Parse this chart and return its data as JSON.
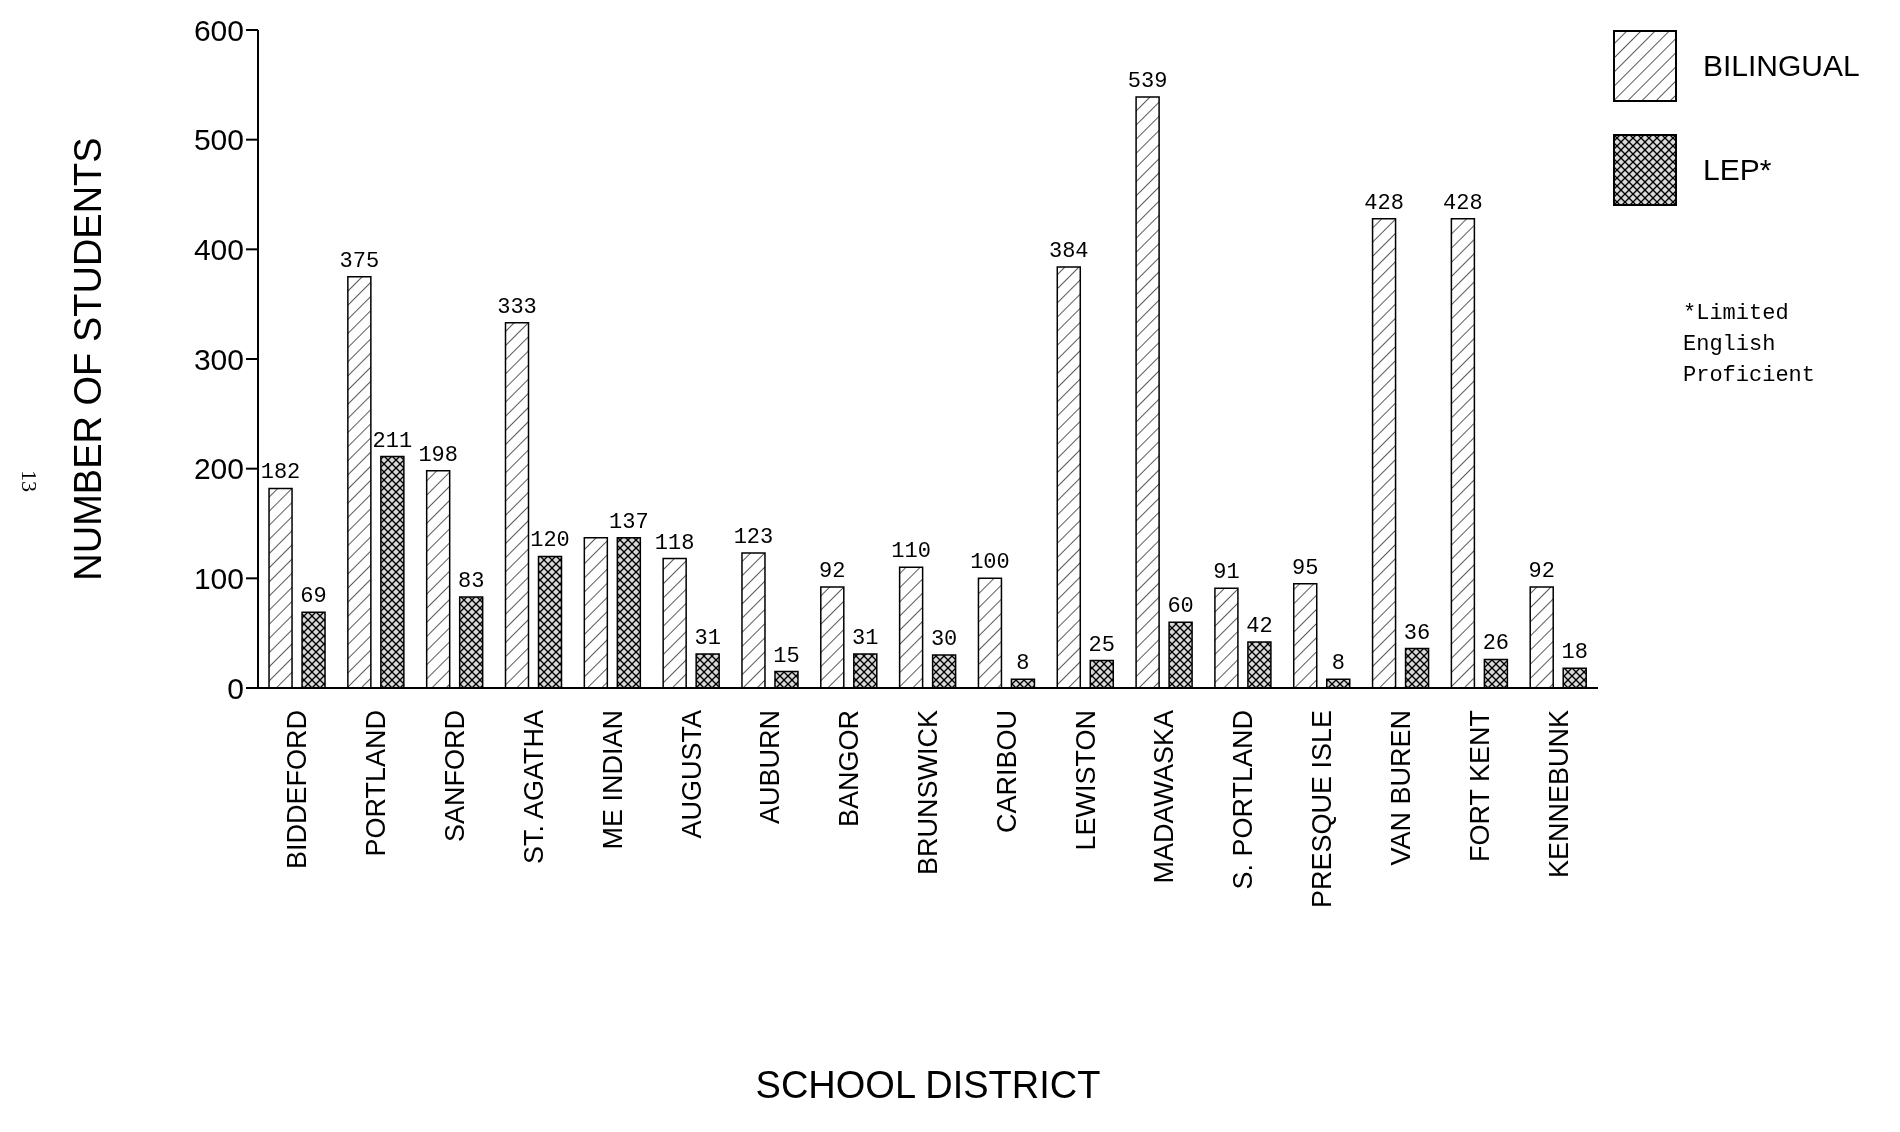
{
  "chart_data": {
    "type": "bar",
    "xlabel": "SCHOOL DISTRICT",
    "ylabel": "NUMBER OF STUDENTS",
    "categories": [
      "BIDDEFORD",
      "PORTLAND",
      "SANFORD",
      "ST. AGATHA",
      "ME INDIAN",
      "AUGUSTA",
      "AUBURN",
      "BANGOR",
      "BRUNSWICK",
      "CARIBOU",
      "LEWISTON",
      "MADAWASKA",
      "S. PORTLAND",
      "PRESQUE ISLE",
      "VAN BUREN",
      "FORT KENT",
      "KENNEBUNK"
    ],
    "series": [
      {
        "name": "BILINGUAL",
        "color": "#000000",
        "values": [
          182,
          375,
          198,
          333,
          137,
          118,
          123,
          92,
          110,
          100,
          384,
          539,
          91,
          95,
          428,
          428,
          92
        ],
        "value_labels": [
          "182",
          "375",
          "198",
          "333",
          null,
          "118",
          "123",
          "92",
          "110",
          "100",
          "384",
          "539",
          "91",
          "95",
          "428",
          "428",
          "92"
        ]
      },
      {
        "name": "LEP*",
        "color": "#000000",
        "values": [
          69,
          211,
          83,
          120,
          137,
          31,
          15,
          31,
          30,
          8,
          25,
          60,
          42,
          8,
          36,
          26,
          18
        ],
        "value_labels": [
          "69",
          "211",
          "83",
          "120",
          "137",
          "31",
          "15",
          "31",
          "30",
          "8",
          "25",
          "60",
          "42",
          "8",
          "36",
          "26",
          "18"
        ]
      }
    ],
    "ylim": [
      0,
      600
    ],
    "yticks": [
      0,
      100,
      200,
      300,
      400,
      500,
      600
    ],
    "grid": false,
    "legend": "top right",
    "annotations": [
      "*Limited English Proficient",
      "13"
    ]
  }
}
